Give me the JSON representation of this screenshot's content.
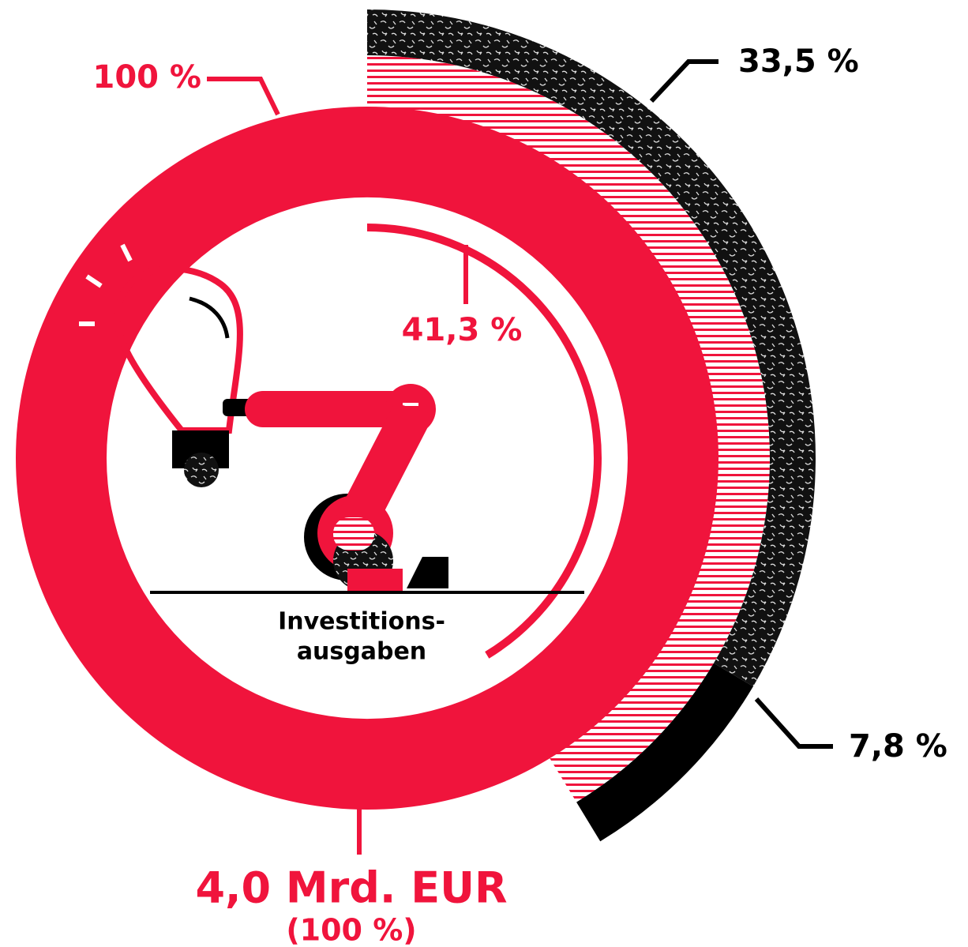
{
  "chart_data": {
    "type": "radial",
    "values": [
      100,
      41.3,
      33.5,
      7.8
    ],
    "value_labels": [
      "100 %",
      "41,3 %",
      "33,5 %",
      "7,8 %"
    ],
    "colors": [
      "#f0143c",
      "#f0143c",
      "#000000",
      "#000000"
    ],
    "center_label": [
      "Investitions-",
      "ausgaben"
    ],
    "amount_label": "4,0 Mrd. EUR",
    "amount_share_label": "(100 %)"
  }
}
